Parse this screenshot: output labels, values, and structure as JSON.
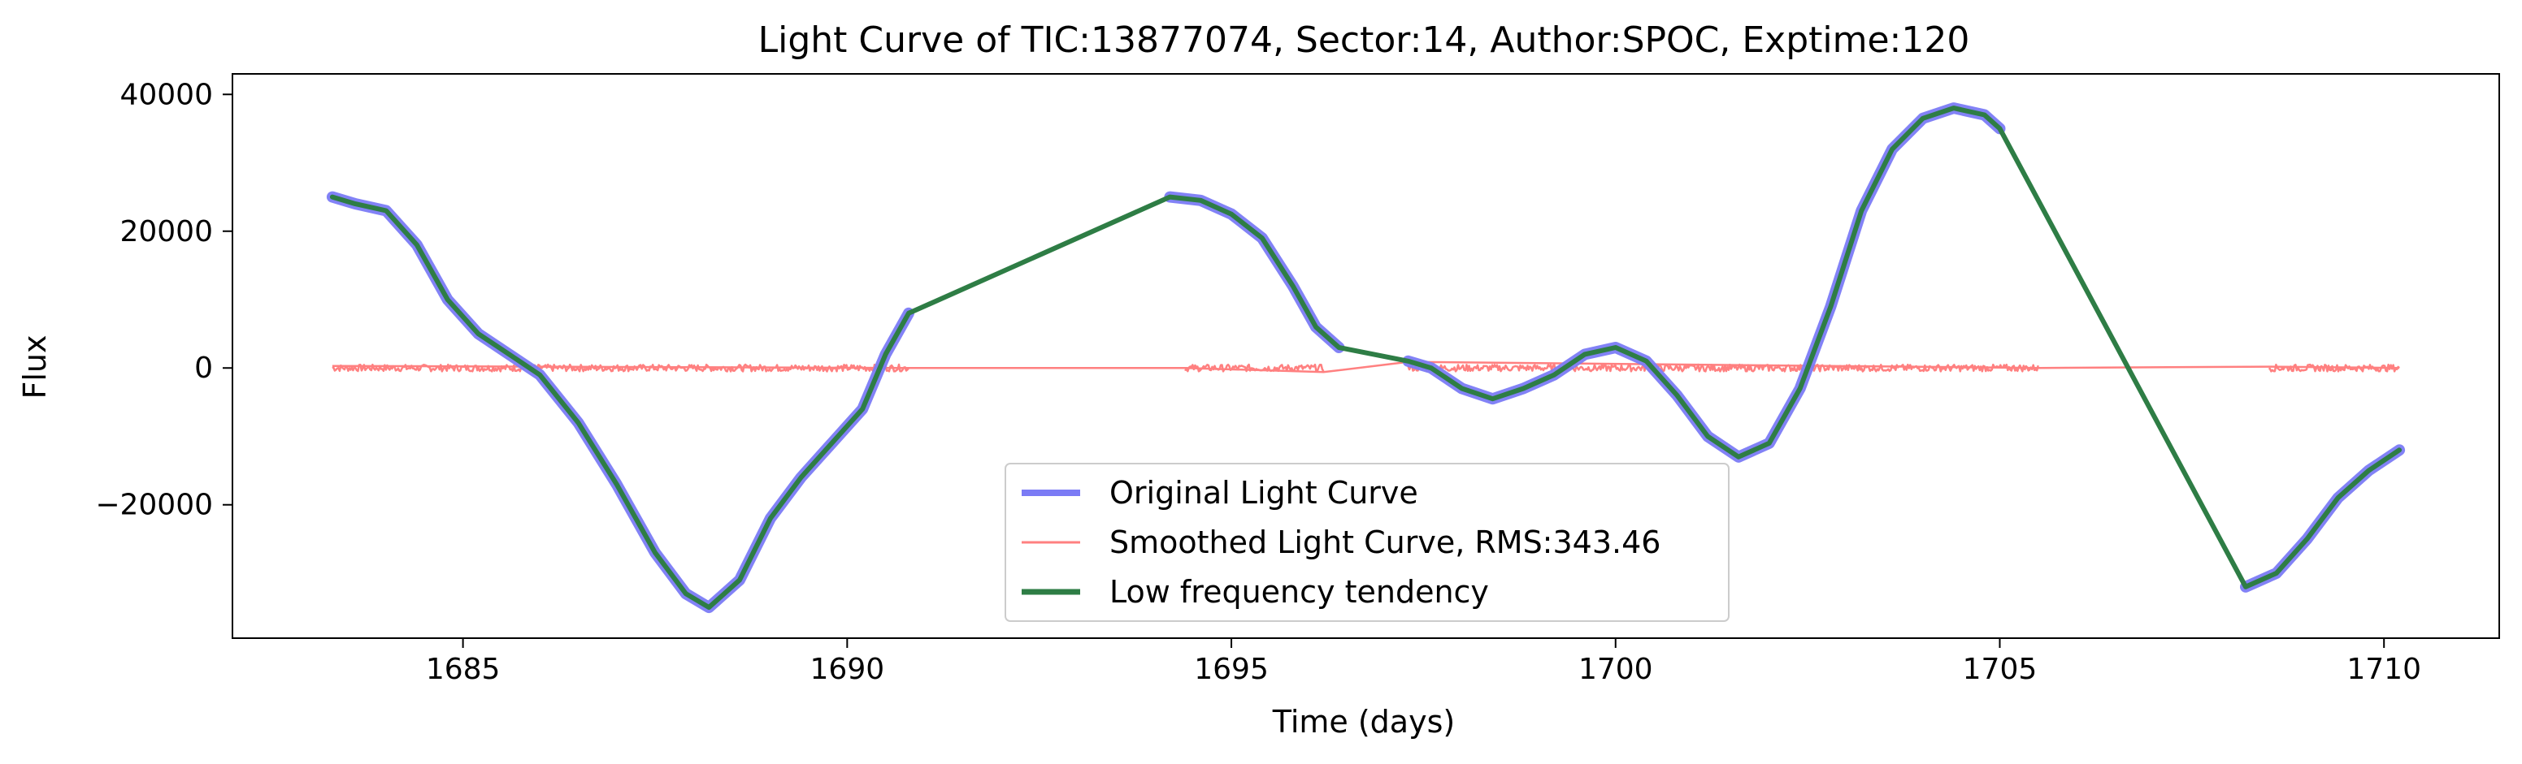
{
  "chart_data": {
    "type": "line",
    "title": "Light Curve of TIC:13877074, Sector:14, Author:SPOC, Exptime:120",
    "xlabel": "Time (days)",
    "ylabel": "Flux",
    "xlim": [
      1682,
      1711.5
    ],
    "ylim": [
      -39500,
      43000
    ],
    "xticks": [
      1685,
      1690,
      1695,
      1700,
      1705,
      1710
    ],
    "xtick_labels": [
      "1685",
      "1690",
      "1695",
      "1700",
      "1705",
      "1710"
    ],
    "yticks": [
      -20000,
      0,
      20000,
      40000
    ],
    "ytick_labels": [
      "−20000",
      "0",
      "20000",
      "40000"
    ],
    "grid": false,
    "legend_position": "lower-center",
    "series": [
      {
        "name": "Original Light Curve",
        "color": "#7b7bf5",
        "segments": [
          {
            "x": [
              1683.3,
              1683.6,
              1684.0,
              1684.4,
              1684.8,
              1685.2,
              1685.6,
              1686.0,
              1686.5,
              1687.0,
              1687.5,
              1687.9,
              1688.2,
              1688.6,
              1689.0,
              1689.4,
              1689.8,
              1690.2,
              1690.5,
              1690.8
            ],
            "y": [
              25000,
              24000,
              23000,
              18000,
              10000,
              5000,
              2000,
              -1000,
              -8000,
              -17000,
              -27000,
              -33000,
              -35000,
              -31000,
              -22000,
              -16000,
              -11000,
              -6000,
              2000,
              8000
            ]
          },
          {
            "x": [
              1694.2,
              1694.6,
              1695.0,
              1695.4,
              1695.8,
              1696.1,
              1696.4
            ],
            "y": [
              25000,
              24500,
              22500,
              19000,
              12000,
              6000,
              3000
            ]
          },
          {
            "x": [
              1697.3,
              1697.6,
              1698.0,
              1698.4,
              1698.8,
              1699.2,
              1699.6,
              1700.0,
              1700.4,
              1700.8,
              1701.2,
              1701.6,
              1702.0,
              1702.4,
              1702.8,
              1703.2,
              1703.6,
              1704.0,
              1704.4,
              1704.8,
              1705.0
            ],
            "y": [
              1000,
              0,
              -3000,
              -4500,
              -3000,
              -1000,
              2000,
              3000,
              1000,
              -4000,
              -10000,
              -13000,
              -11000,
              -3000,
              9000,
              23000,
              32000,
              36500,
              38000,
              37000,
              35000
            ]
          },
          {
            "x": [
              1708.2,
              1708.6,
              1709.0,
              1709.4,
              1709.8,
              1710.2
            ],
            "y": [
              -32000,
              -30000,
              -25000,
              -19000,
              -15000,
              -12000
            ]
          }
        ]
      },
      {
        "name": "Smoothed Light Curve, RMS:343.46",
        "color": "#ff8080",
        "segments": [
          {
            "x": [
              1683.3,
              1690.8
            ],
            "y": [
              0,
              0
            ]
          },
          {
            "x": [
              1694.4,
              1696.2
            ],
            "y": [
              0,
              0
            ]
          },
          {
            "x": [
              1697.3,
              1705.5
            ],
            "y": [
              0,
              0
            ]
          },
          {
            "x": [
              1708.5,
              1710.2
            ],
            "y": [
              0,
              0
            ]
          }
        ],
        "connector": {
          "x": [
            1683.3,
            1690.8,
            1694.4,
            1696.2,
            1697.3,
            1705.5,
            1708.5,
            1710.2
          ],
          "y": [
            300,
            0,
            0,
            -600,
            900,
            0,
            200,
            0
          ]
        },
        "noise_amplitude": 500
      },
      {
        "name": "Low frequency tendency",
        "color": "#2e7d45",
        "x": [
          1683.3,
          1683.6,
          1684.0,
          1684.4,
          1684.8,
          1685.2,
          1685.6,
          1686.0,
          1686.5,
          1687.0,
          1687.5,
          1687.9,
          1688.2,
          1688.6,
          1689.0,
          1689.4,
          1689.8,
          1690.2,
          1690.5,
          1690.8,
          1694.2,
          1694.6,
          1695.0,
          1695.4,
          1695.8,
          1696.1,
          1696.4,
          1697.3,
          1697.6,
          1698.0,
          1698.4,
          1698.8,
          1699.2,
          1699.6,
          1700.0,
          1700.4,
          1700.8,
          1701.2,
          1701.6,
          1702.0,
          1702.4,
          1702.8,
          1703.2,
          1703.6,
          1704.0,
          1704.4,
          1704.8,
          1705.0,
          1708.2,
          1708.6,
          1709.0,
          1709.4,
          1709.8,
          1710.2
        ],
        "y": [
          25000,
          24000,
          23000,
          18000,
          10000,
          5000,
          2000,
          -1000,
          -8000,
          -17000,
          -27000,
          -33000,
          -35000,
          -31000,
          -22000,
          -16000,
          -11000,
          -6000,
          2000,
          8000,
          25000,
          24500,
          22500,
          19000,
          12000,
          6000,
          3000,
          1000,
          0,
          -3000,
          -4500,
          -3000,
          -1000,
          2000,
          3000,
          1000,
          -4000,
          -10000,
          -13000,
          -11000,
          -3000,
          9000,
          23000,
          32000,
          36500,
          38000,
          37000,
          35000,
          -32000,
          -30000,
          -25000,
          -19000,
          -15000,
          -12000
        ]
      }
    ]
  }
}
